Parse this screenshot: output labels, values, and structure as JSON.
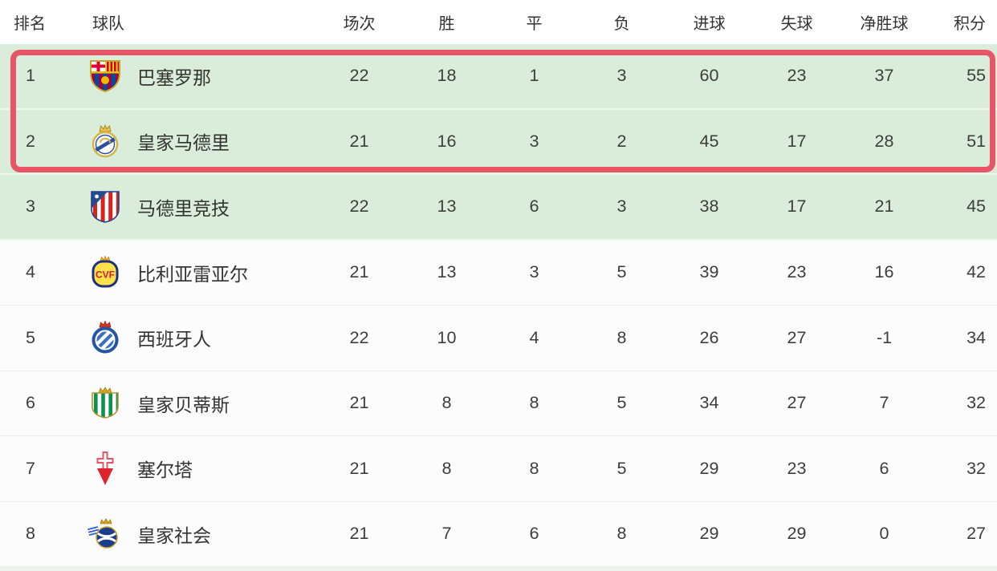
{
  "colors": {
    "qualification_zone_bg": "#d9edda",
    "highlight_box_border": "#e75566",
    "header_text": "#333333",
    "cell_text": "#3d3d3d",
    "row_divider": "#ededed"
  },
  "table": {
    "headers": [
      "排名",
      "球队",
      "场次",
      "胜",
      "平",
      "负",
      "进球",
      "失球",
      "净胜球",
      "积分"
    ],
    "rows": [
      {
        "rank": "1",
        "team": "巴塞罗那",
        "logo": "barcelona",
        "played": "22",
        "wins": "18",
        "draws": "1",
        "losses": "3",
        "goals_for": "60",
        "goals_against": "23",
        "goal_diff": "37",
        "points": "55",
        "zone": "green",
        "highlighted": true
      },
      {
        "rank": "2",
        "team": "皇家马德里",
        "logo": "real-madrid",
        "played": "21",
        "wins": "16",
        "draws": "3",
        "losses": "2",
        "goals_for": "45",
        "goals_against": "17",
        "goal_diff": "28",
        "points": "51",
        "zone": "green",
        "highlighted": true
      },
      {
        "rank": "3",
        "team": "马德里竞技",
        "logo": "atletico",
        "played": "22",
        "wins": "13",
        "draws": "6",
        "losses": "3",
        "goals_for": "38",
        "goals_against": "17",
        "goal_diff": "21",
        "points": "45",
        "zone": "green",
        "highlighted": false
      },
      {
        "rank": "4",
        "team": "比利亚雷亚尔",
        "logo": "villarreal",
        "played": "21",
        "wins": "13",
        "draws": "3",
        "losses": "5",
        "goals_for": "39",
        "goals_against": "23",
        "goal_diff": "16",
        "points": "42",
        "zone": "white",
        "highlighted": false
      },
      {
        "rank": "5",
        "team": "西班牙人",
        "logo": "espanyol",
        "played": "22",
        "wins": "10",
        "draws": "4",
        "losses": "8",
        "goals_for": "26",
        "goals_against": "27",
        "goal_diff": "-1",
        "points": "34",
        "zone": "white",
        "highlighted": false
      },
      {
        "rank": "6",
        "team": "皇家贝蒂斯",
        "logo": "betis",
        "played": "21",
        "wins": "8",
        "draws": "8",
        "losses": "5",
        "goals_for": "34",
        "goals_against": "27",
        "goal_diff": "7",
        "points": "32",
        "zone": "white",
        "highlighted": false
      },
      {
        "rank": "7",
        "team": "塞尔塔",
        "logo": "celta",
        "played": "21",
        "wins": "8",
        "draws": "8",
        "losses": "5",
        "goals_for": "29",
        "goals_against": "23",
        "goal_diff": "6",
        "points": "32",
        "zone": "white",
        "highlighted": false
      },
      {
        "rank": "8",
        "team": "皇家社会",
        "logo": "real-sociedad",
        "played": "21",
        "wins": "7",
        "draws": "6",
        "losses": "8",
        "goals_for": "29",
        "goals_against": "29",
        "goal_diff": "0",
        "points": "27",
        "zone": "white",
        "highlighted": false
      }
    ]
  }
}
